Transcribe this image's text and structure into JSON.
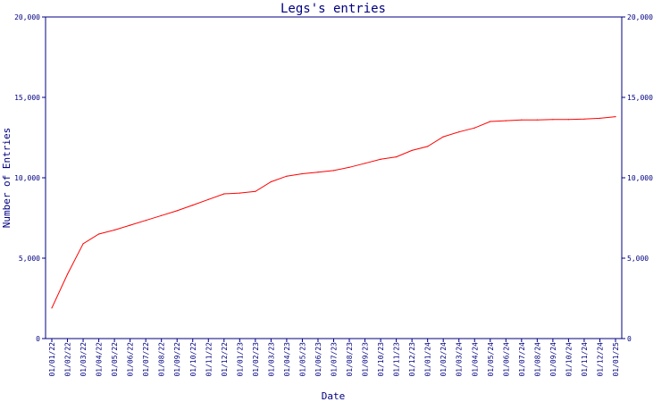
{
  "chart_data": {
    "type": "line",
    "title": "Legs's entries",
    "xlabel": "Date",
    "ylabel": "Number of Entries",
    "ylim": [
      0,
      20000
    ],
    "y_ticks": [
      "0",
      "5,000",
      "10,000",
      "15,000",
      "20,000"
    ],
    "y_axis_right": true,
    "grid": false,
    "x_tick_labels": [
      "01/01/22",
      "01/02/22",
      "01/03/22",
      "01/04/22",
      "01/05/22",
      "01/06/22",
      "01/07/22",
      "01/08/22",
      "01/09/22",
      "01/10/22",
      "01/11/22",
      "01/12/22",
      "01/01/23",
      "01/02/23",
      "01/03/23",
      "01/04/23",
      "01/05/23",
      "01/06/23",
      "01/07/23",
      "01/08/23",
      "01/09/23",
      "01/10/23",
      "01/11/23",
      "01/12/23",
      "01/01/24",
      "01/02/24",
      "01/03/24",
      "01/04/24",
      "01/05/24",
      "01/06/24",
      "01/07/24",
      "01/08/24",
      "01/09/24",
      "01/10/24",
      "01/11/24",
      "01/12/24",
      "01/01/25"
    ],
    "series": [
      {
        "color": "#ff0000",
        "x": [
          "01/01/22",
          "01/02/22",
          "01/03/22",
          "01/04/22",
          "01/05/22",
          "01/06/22",
          "01/07/22",
          "01/08/22",
          "01/09/22",
          "01/10/22",
          "01/11/22",
          "01/12/22",
          "01/01/23",
          "01/02/23",
          "01/03/23",
          "01/04/23",
          "01/05/23",
          "01/06/23",
          "01/07/23",
          "01/08/23",
          "01/09/23",
          "01/10/23",
          "01/11/23",
          "01/12/23",
          "01/01/24",
          "01/02/24",
          "01/03/24",
          "01/04/24",
          "01/05/24",
          "01/06/24",
          "01/07/24",
          "01/08/24",
          "01/09/24",
          "01/10/24",
          "01/11/24",
          "01/12/24",
          "01/01/25"
        ],
        "values": [
          1900,
          4000,
          5900,
          6500,
          6750,
          7050,
          7350,
          7650,
          7950,
          8300,
          8650,
          9000,
          9050,
          9150,
          9750,
          10100,
          10250,
          10350,
          10450,
          10650,
          10900,
          11150,
          11300,
          11700,
          11950,
          12550,
          12850,
          13100,
          13500,
          13550,
          13600,
          13600,
          13620,
          13630,
          13650,
          13700,
          13800
        ]
      }
    ],
    "colors": {
      "axis": "#000080",
      "line": "#ff0000",
      "background": "#ffffff"
    }
  }
}
